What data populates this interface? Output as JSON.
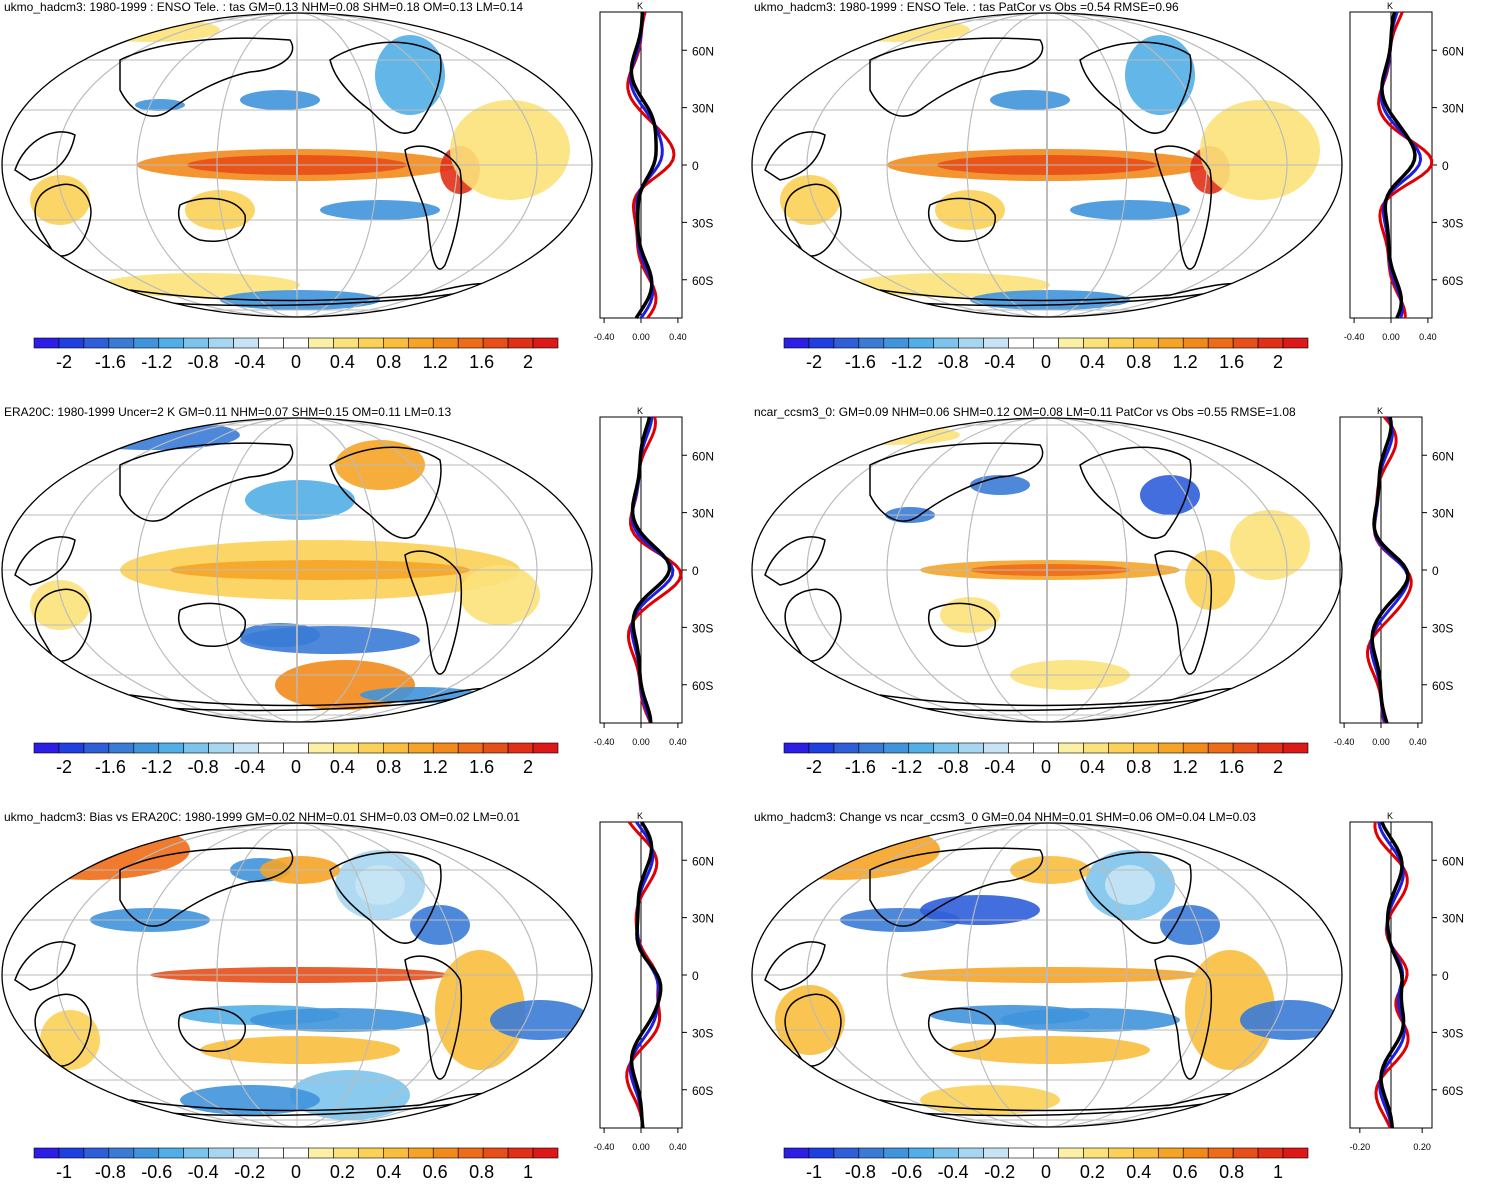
{
  "palette_neg": [
    "#2d1ee6",
    "#1f3fe0",
    "#2f5ed9",
    "#3a7bd6",
    "#3f94dc",
    "#52aee6",
    "#7cc4ec",
    "#a6d6f0",
    "#c8e4f4"
  ],
  "palette_pos": [
    "#fbf0a6",
    "#fbe27a",
    "#fbd257",
    "#f9be3e",
    "#f6a426",
    "#f28a1a",
    "#ee6c17",
    "#e84e17",
    "#e23018",
    "#dd1818"
  ],
  "colors": {
    "black": "#000000",
    "red": "#e00000",
    "blue": "#1e1ee0",
    "grid": "#bbbbbb"
  },
  "panels": [
    {
      "title": "ukmo_hadcm3: 1980-1999 : ENSO Tele. : tas GM=0.13 NHM=0.08 SHM=0.18 OM=0.13 LM=0.14",
      "lat_labels": [
        "60N",
        "30N",
        "0",
        "30S",
        "60S"
      ],
      "zonal_xticks": [
        "-0.40",
        "0.00",
        "0.40"
      ],
      "zonal_unit": "K",
      "colorbar_labels": [
        "-2",
        "-1.6",
        "-1.2",
        "-0.8",
        "-0.4",
        "0",
        "0.4",
        "0.8",
        "1.2",
        "1.6",
        "2"
      ]
    },
    {
      "title": "ukmo_hadcm3: 1980-1999 : ENSO Tele. : tas PatCor vs Obs =0.54 RMSE=0.96",
      "lat_labels": [
        "60N",
        "30N",
        "0",
        "30S",
        "60S"
      ],
      "zonal_xticks": [
        "-0.40",
        "0.00",
        "0.40"
      ],
      "zonal_unit": "K",
      "colorbar_labels": [
        "-2",
        "-1.6",
        "-1.2",
        "-0.8",
        "-0.4",
        "0",
        "0.4",
        "0.8",
        "1.2",
        "1.6",
        "2"
      ]
    },
    {
      "title": "ERA20C: 1980-1999 Uncer=2 K GM=0.11 NHM=0.07 SHM=0.15 OM=0.11 LM=0.13",
      "lat_labels": [
        "60N",
        "30N",
        "0",
        "30S",
        "60S"
      ],
      "zonal_xticks": [
        "-0.40",
        "0.00",
        "0.40"
      ],
      "zonal_unit": "K",
      "colorbar_labels": [
        "-2",
        "-1.6",
        "-1.2",
        "-0.8",
        "-0.4",
        "0",
        "0.4",
        "0.8",
        "1.2",
        "1.6",
        "2"
      ]
    },
    {
      "title": "ncar_ccsm3_0: GM=0.09 NHM=0.06 SHM=0.12 OM=0.08 LM=0.11 PatCor vs Obs =0.55 RMSE=1.08",
      "lat_labels": [
        "60N",
        "30N",
        "0",
        "30S",
        "60S"
      ],
      "zonal_xticks": [
        "-0.40",
        "0.00",
        "0.40"
      ],
      "zonal_unit": "K",
      "colorbar_labels": [
        "-2",
        "-1.6",
        "-1.2",
        "-0.8",
        "-0.4",
        "0",
        "0.4",
        "0.8",
        "1.2",
        "1.6",
        "2"
      ]
    },
    {
      "title": "ukmo_hadcm3: Bias vs ERA20C: 1980-1999 GM=0.02 NHM=0.01 SHM=0.03 OM=0.02 LM=0.01",
      "lat_labels": [
        "60N",
        "30N",
        "0",
        "30S",
        "60S"
      ],
      "zonal_xticks": [
        "-0.40",
        "0.00",
        "0.40"
      ],
      "zonal_unit": "K",
      "colorbar_labels": [
        "-1",
        "-0.8",
        "-0.6",
        "-0.4",
        "-0.2",
        "0",
        "0.2",
        "0.4",
        "0.6",
        "0.8",
        "1"
      ]
    },
    {
      "title": "ukmo_hadcm3: Change vs ncar_ccsm3_0 GM=0.04 NHM=0.01 SHM=0.06 OM=0.04 LM=0.03",
      "lat_labels": [
        "60N",
        "30N",
        "0",
        "30S",
        "60S"
      ],
      "zonal_xticks": [
        "-0.20",
        "0.20"
      ],
      "zonal_unit": "K",
      "colorbar_labels": [
        "-1",
        "-0.8",
        "-0.6",
        "-0.4",
        "-0.2",
        "0",
        "0.2",
        "0.4",
        "0.6",
        "0.8",
        "1"
      ]
    }
  ]
}
